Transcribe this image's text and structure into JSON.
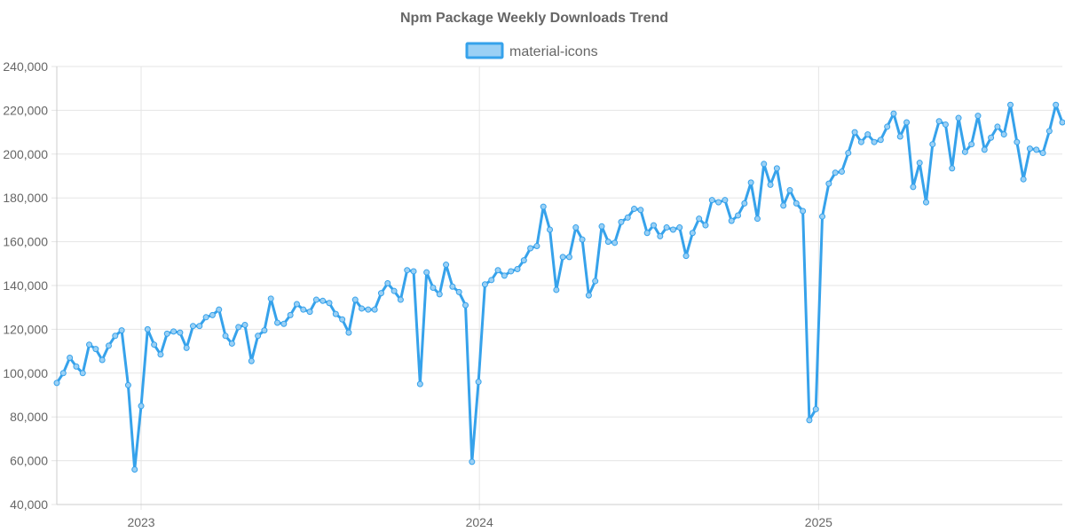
{
  "chart_data": {
    "type": "line",
    "title": "Npm Package Weekly Downloads Trend",
    "xlabel": "",
    "ylabel": "",
    "x_start": "2022-10-02",
    "x_step_days": 7,
    "x_range": [
      "2022-10-02",
      "2025-09-21"
    ],
    "x_ticks": [
      "2023",
      "2024",
      "2025"
    ],
    "ylim": [
      40000,
      240000
    ],
    "y_ticks": [
      40000,
      60000,
      80000,
      100000,
      120000,
      140000,
      160000,
      180000,
      200000,
      220000,
      240000
    ],
    "y_tick_labels": [
      "40,000",
      "60,000",
      "80,000",
      "100,000",
      "120,000",
      "140,000",
      "160,000",
      "180,000",
      "200,000",
      "220,000",
      "240,000"
    ],
    "grid": true,
    "legend": {
      "position": "top-center"
    },
    "colors": {
      "line": "#36a2eb",
      "fill": "#9ad0f5",
      "point": "#9ad0f5"
    },
    "series": [
      {
        "name": "material-icons",
        "values": [
          95500,
          100000,
          107000,
          103000,
          100000,
          113000,
          111000,
          106000,
          112500,
          117000,
          119500,
          94500,
          56000,
          85000,
          120000,
          113000,
          108500,
          118000,
          119000,
          118500,
          111500,
          121500,
          121500,
          125500,
          126500,
          129000,
          117000,
          113500,
          121000,
          122000,
          105500,
          117000,
          119500,
          134000,
          123000,
          122500,
          126500,
          131500,
          129000,
          128000,
          133500,
          133000,
          132000,
          127000,
          124500,
          118500,
          133500,
          129500,
          129000,
          129000,
          136500,
          141000,
          137500,
          133500,
          147000,
          146500,
          95000,
          146000,
          139000,
          136000,
          149500,
          139500,
          137000,
          131000,
          59500,
          96000,
          140500,
          142500,
          147000,
          144500,
          146500,
          147500,
          151500,
          157000,
          158000,
          176000,
          165500,
          138000,
          153000,
          153000,
          166500,
          161000,
          135500,
          142000,
          167000,
          160000,
          159500,
          169000,
          171000,
          175000,
          174500,
          164000,
          167500,
          162500,
          166500,
          165500,
          166500,
          153500,
          164000,
          170500,
          167500,
          179000,
          178000,
          179000,
          169500,
          172000,
          177500,
          187000,
          170500,
          195500,
          186000,
          193500,
          176500,
          183500,
          177500,
          174000,
          78500,
          83500,
          171500,
          186500,
          191500,
          192000,
          200500,
          210000,
          205500,
          209000,
          205500,
          206500,
          212500,
          218500,
          208000,
          214500,
          185000,
          196000,
          178000,
          204500,
          215000,
          213500,
          193500,
          216500,
          201000,
          204500,
          217500,
          202000,
          207500,
          212500,
          209000,
          222500,
          205500,
          188500,
          202500,
          202000,
          200500,
          210500,
          222500,
          214500
        ]
      }
    ]
  }
}
